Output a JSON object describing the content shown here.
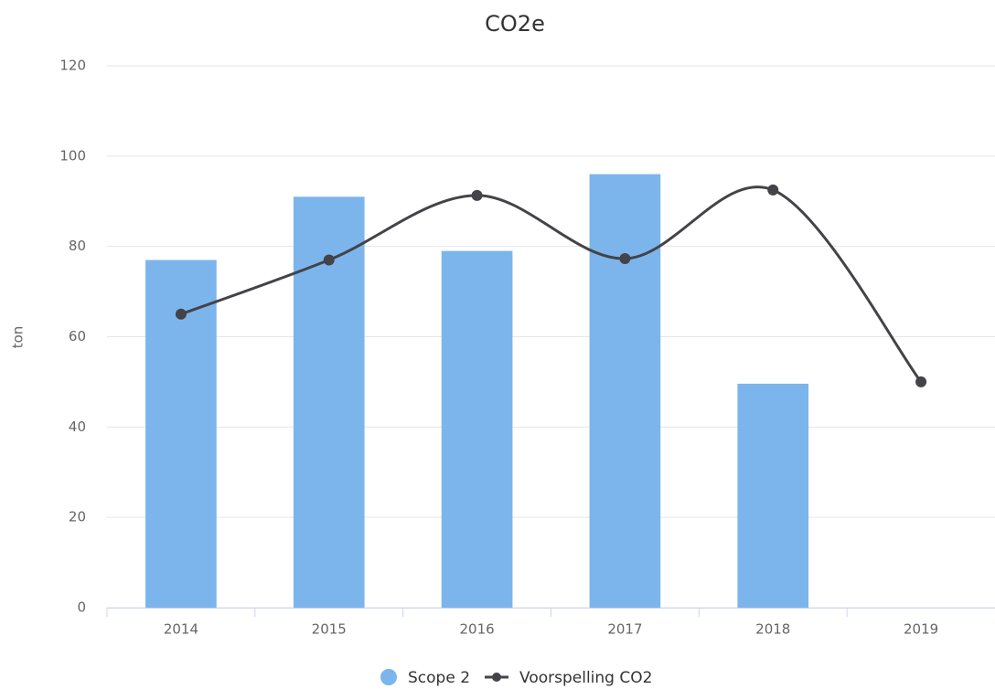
{
  "chart_data": {
    "type": "combo",
    "title": "CO2e",
    "y_label": "ton",
    "categories": [
      "2014",
      "2015",
      "2016",
      "2017",
      "2018",
      "2019"
    ],
    "series": [
      {
        "name": "Scope 2",
        "type": "bar",
        "color": "#7cb5ec",
        "values": [
          77,
          91,
          79,
          96,
          49.6,
          null
        ]
      },
      {
        "name": "Voorspelling CO2",
        "type": "spline",
        "color": "#434348",
        "values": [
          65,
          77,
          91.3,
          77.3,
          92.5,
          50
        ]
      }
    ],
    "ylim": [
      0,
      120
    ],
    "yticks": [
      0,
      20,
      40,
      60,
      80,
      100,
      120
    ],
    "grid": true,
    "legend": "bottom"
  }
}
